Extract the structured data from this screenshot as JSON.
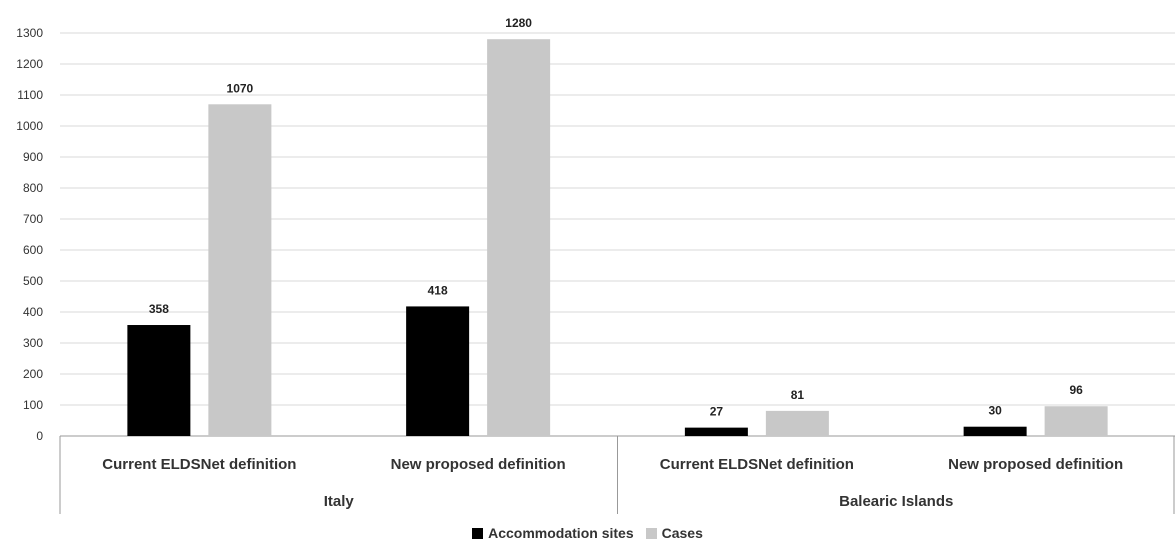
{
  "chart_data": {
    "type": "bar",
    "groups": [
      {
        "name": "Italy",
        "categories": [
          "Current ELDSNet definition",
          "New proposed definition"
        ]
      },
      {
        "name": "Balearic Islands",
        "categories": [
          "Current ELDSNet definition",
          "New proposed definition"
        ]
      }
    ],
    "series": [
      {
        "name": "Accommodation sites",
        "color": "#000000",
        "values": [
          358,
          418,
          27,
          30
        ]
      },
      {
        "name": "Cases",
        "color": "#c8c8c8",
        "values": [
          1070,
          1280,
          81,
          96
        ]
      }
    ],
    "ylim": [
      0,
      1300
    ],
    "yticks": [
      0,
      100,
      200,
      300,
      400,
      500,
      600,
      700,
      800,
      900,
      1000,
      1100,
      1200,
      1300
    ],
    "grid": true,
    "legend_position": "bottom-center"
  }
}
